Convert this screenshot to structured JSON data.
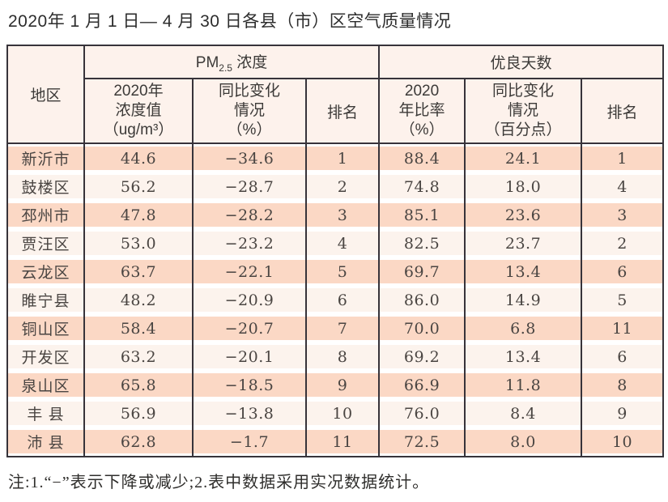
{
  "page": {
    "title": "2020年 1 月 1 日— 4 月 30 日各县（市）区空气质量情况",
    "footnote": "注:1.“−”表示下降或减少;2.表中数据采用实况数据统计。"
  },
  "colors": {
    "row_band_pink": "#fbd8c5",
    "row_band_light": "#fcf3ed",
    "header_bg": "#fdf2ec",
    "table_border": "#37333a"
  },
  "table": {
    "header": {
      "region": "地区",
      "pm_group": {
        "main": "PM",
        "sub": "2.5",
        "rest": " 浓度"
      },
      "good_group": "优良天数",
      "pm_concentration": {
        "lines": [
          "2020年",
          "浓度值",
          "（ug/m³）"
        ]
      },
      "pm_change": {
        "lines": [
          "同比变化",
          "情况",
          "（%）"
        ]
      },
      "pm_rank": "排名",
      "good_ratio": {
        "lines": [
          "2020",
          "年比率",
          "（%）"
        ]
      },
      "good_change": {
        "lines": [
          "同比变化",
          "情况",
          "（百分点）"
        ]
      },
      "good_rank": "排名"
    },
    "rows": [
      {
        "region": "新沂市",
        "pm_conc": "44.6",
        "pm_change": "−34.6",
        "pm_rank": "1",
        "good_ratio": "88.4",
        "good_change": "24.1",
        "good_rank": "1"
      },
      {
        "region": "鼓楼区",
        "pm_conc": "56.2",
        "pm_change": "−28.7",
        "pm_rank": "2",
        "good_ratio": "74.8",
        "good_change": "18.0",
        "good_rank": "4"
      },
      {
        "region": "邳州市",
        "pm_conc": "47.8",
        "pm_change": "−28.2",
        "pm_rank": "3",
        "good_ratio": "85.1",
        "good_change": "23.6",
        "good_rank": "3"
      },
      {
        "region": "贾汪区",
        "pm_conc": "53.0",
        "pm_change": "−23.2",
        "pm_rank": "4",
        "good_ratio": "82.5",
        "good_change": "23.7",
        "good_rank": "2"
      },
      {
        "region": "云龙区",
        "pm_conc": "63.7",
        "pm_change": "−22.1",
        "pm_rank": "5",
        "good_ratio": "69.7",
        "good_change": "13.4",
        "good_rank": "6"
      },
      {
        "region": "睢宁县",
        "pm_conc": "48.2",
        "pm_change": "−20.9",
        "pm_rank": "6",
        "good_ratio": "86.0",
        "good_change": "14.9",
        "good_rank": "5"
      },
      {
        "region": "铜山区",
        "pm_conc": "58.4",
        "pm_change": "−20.7",
        "pm_rank": "7",
        "good_ratio": "70.0",
        "good_change": "6.8",
        "good_rank": "11"
      },
      {
        "region": "开发区",
        "pm_conc": "63.2",
        "pm_change": "−20.1",
        "pm_rank": "8",
        "good_ratio": "69.2",
        "good_change": "13.4",
        "good_rank": "6"
      },
      {
        "region": "泉山区",
        "pm_conc": "65.8",
        "pm_change": "−18.5",
        "pm_rank": "9",
        "good_ratio": "66.9",
        "good_change": "11.8",
        "good_rank": "8"
      },
      {
        "region": "丰 县",
        "pm_conc": "56.9",
        "pm_change": "−13.8",
        "pm_rank": "10",
        "good_ratio": "76.0",
        "good_change": "8.4",
        "good_rank": "9"
      },
      {
        "region": "沛 县",
        "pm_conc": "62.8",
        "pm_change": "−1.7",
        "pm_rank": "11",
        "good_ratio": "72.5",
        "good_change": "8.0",
        "good_rank": "10"
      }
    ]
  }
}
